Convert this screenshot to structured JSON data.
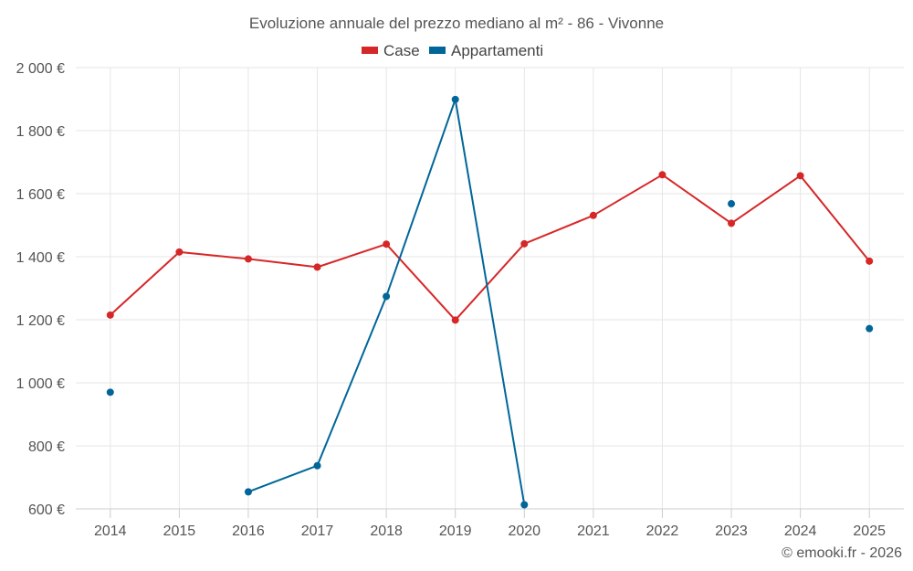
{
  "chart_data": {
    "type": "line",
    "title": "Evoluzione annuale del prezzo mediano al m² - 86 - Vivonne",
    "credit": "© emooki.fr - 2026",
    "categories": [
      "2014",
      "2015",
      "2016",
      "2017",
      "2018",
      "2019",
      "2020",
      "2021",
      "2022",
      "2023",
      "2024",
      "2025"
    ],
    "y_ticks": [
      600,
      800,
      1000,
      1200,
      1400,
      1600,
      1800,
      2000
    ],
    "y_tick_labels": [
      "600 €",
      "800 €",
      "1 000 €",
      "1 200 €",
      "1 400 €",
      "1 600 €",
      "1 800 €",
      "2 000 €"
    ],
    "ylim": [
      600,
      2000
    ],
    "grid": true,
    "legend_position": "top-center",
    "series": [
      {
        "name": "Case",
        "color": "#d62728",
        "values": [
          1215,
          1415,
          1393,
          1367,
          1440,
          1199,
          1441,
          1531,
          1660,
          1506,
          1657,
          1386
        ]
      },
      {
        "name": "Appartamenti",
        "color": "#006699",
        "values": [
          970,
          null,
          654,
          737,
          1274,
          1899,
          613,
          null,
          null,
          1568,
          null,
          1172
        ]
      }
    ]
  }
}
